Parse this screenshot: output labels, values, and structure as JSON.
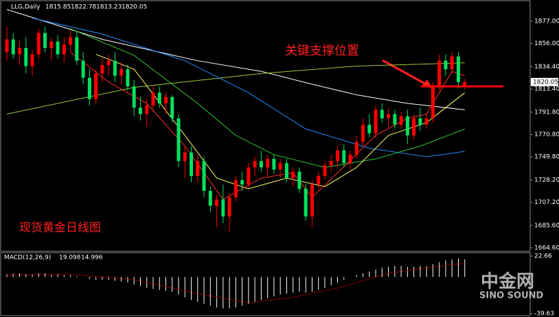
{
  "chart_data": [
    {
      "type": "candlestick",
      "header": "LLG,Daily",
      "annotation": "关键支撑位置",
      "caption": "现货黄金日线图",
      "support_level": 1816,
      "up_color": "#ff0000",
      "down_color": "#00e060",
      "ylim": [
        1661.4,
        1893.7
      ],
      "yticks": [
        {
          "value": 1877,
          "label": "1877.00"
        },
        {
          "value": 1856,
          "label": "1856.00"
        },
        {
          "value": 1834.4,
          "label": "1834.40"
        },
        {
          "value": 1813.4,
          "label": "1813.40"
        },
        {
          "value": 1791.8,
          "label": "1791.80"
        },
        {
          "value": 1770.8,
          "label": "1770.80"
        },
        {
          "value": 1749.8,
          "label": "1749.80"
        },
        {
          "value": 1728.2,
          "label": "1728.20"
        },
        {
          "value": 1707.2,
          "label": "1707.20"
        },
        {
          "value": 1685.6,
          "label": "1685.60"
        },
        {
          "value": 1664.6,
          "label": "1664.60"
        }
      ],
      "ohlc": [
        [
          1848,
          1872,
          1840,
          1860
        ],
        [
          1860,
          1866,
          1842,
          1846
        ],
        [
          1846,
          1858,
          1836,
          1852
        ],
        [
          1852,
          1862,
          1828,
          1835
        ],
        [
          1835,
          1850,
          1826,
          1846
        ],
        [
          1846,
          1870,
          1842,
          1866
        ],
        [
          1866,
          1872,
          1848,
          1852
        ],
        [
          1852,
          1862,
          1840,
          1858
        ],
        [
          1858,
          1864,
          1842,
          1846
        ],
        [
          1846,
          1862,
          1838,
          1855
        ],
        [
          1855,
          1868,
          1848,
          1862
        ],
        [
          1862,
          1868,
          1836,
          1840
        ],
        [
          1840,
          1848,
          1818,
          1824
        ],
        [
          1824,
          1832,
          1798,
          1804
        ],
        [
          1804,
          1832,
          1800,
          1828
        ],
        [
          1828,
          1842,
          1820,
          1836
        ],
        [
          1836,
          1846,
          1826,
          1840
        ],
        [
          1840,
          1848,
          1820,
          1826
        ],
        [
          1826,
          1838,
          1818,
          1832
        ],
        [
          1832,
          1836,
          1812,
          1816
        ],
        [
          1816,
          1822,
          1788,
          1796
        ],
        [
          1796,
          1806,
          1784,
          1790
        ],
        [
          1790,
          1804,
          1778,
          1798
        ],
        [
          1798,
          1816,
          1792,
          1810
        ],
        [
          1810,
          1816,
          1796,
          1800
        ],
        [
          1800,
          1810,
          1790,
          1806
        ],
        [
          1806,
          1808,
          1782,
          1786
        ],
        [
          1786,
          1790,
          1740,
          1746
        ],
        [
          1746,
          1760,
          1730,
          1754
        ],
        [
          1754,
          1760,
          1726,
          1732
        ],
        [
          1732,
          1752,
          1726,
          1746
        ],
        [
          1746,
          1750,
          1712,
          1718
        ],
        [
          1718,
          1722,
          1698,
          1704
        ],
        [
          1704,
          1714,
          1684,
          1710
        ],
        [
          1710,
          1724,
          1688,
          1694
        ],
        [
          1694,
          1716,
          1680,
          1712
        ],
        [
          1712,
          1732,
          1708,
          1728
        ],
        [
          1728,
          1736,
          1718,
          1724
        ],
        [
          1724,
          1744,
          1720,
          1740
        ],
        [
          1740,
          1750,
          1732,
          1746
        ],
        [
          1746,
          1756,
          1736,
          1740
        ],
        [
          1740,
          1752,
          1732,
          1748
        ],
        [
          1748,
          1752,
          1734,
          1738
        ],
        [
          1738,
          1748,
          1730,
          1744
        ],
        [
          1744,
          1748,
          1726,
          1730
        ],
        [
          1730,
          1740,
          1722,
          1736
        ],
        [
          1736,
          1740,
          1716,
          1720
        ],
        [
          1720,
          1724,
          1690,
          1694
        ],
        [
          1694,
          1728,
          1684,
          1724
        ],
        [
          1724,
          1736,
          1720,
          1732
        ],
        [
          1732,
          1746,
          1728,
          1742
        ],
        [
          1742,
          1752,
          1736,
          1746
        ],
        [
          1746,
          1760,
          1740,
          1756
        ],
        [
          1756,
          1762,
          1740,
          1744
        ],
        [
          1744,
          1756,
          1738,
          1752
        ],
        [
          1752,
          1770,
          1748,
          1764
        ],
        [
          1764,
          1786,
          1760,
          1780
        ],
        [
          1780,
          1790,
          1768,
          1772
        ],
        [
          1772,
          1798,
          1768,
          1794
        ],
        [
          1794,
          1800,
          1782,
          1786
        ],
        [
          1786,
          1796,
          1778,
          1790
        ],
        [
          1790,
          1794,
          1776,
          1780
        ],
        [
          1780,
          1792,
          1776,
          1788
        ],
        [
          1788,
          1794,
          1762,
          1770
        ],
        [
          1770,
          1790,
          1766,
          1786
        ],
        [
          1786,
          1796,
          1774,
          1780
        ],
        [
          1780,
          1790,
          1776,
          1786
        ],
        [
          1786,
          1820,
          1782,
          1816
        ],
        [
          1816,
          1846,
          1812,
          1840
        ],
        [
          1840,
          1846,
          1826,
          1832
        ],
        [
          1832,
          1848,
          1828,
          1844
        ],
        [
          1844,
          1848,
          1814,
          1820
        ],
        [
          1815.85,
          1822.78,
          1813.23,
          1820.05
        ]
      ],
      "series": [
        {
          "color": "#ffffff",
          "x": [
            0,
            15,
            30,
            40,
            48,
            55,
            63,
            72
          ],
          "values": [
            1888,
            1860,
            1840,
            1830,
            1818,
            1808,
            1800,
            1794
          ]
        },
        {
          "color": "#9acd32",
          "x": [
            0,
            20,
            40,
            55,
            72
          ],
          "values": [
            1790,
            1815,
            1828,
            1835,
            1838
          ]
        },
        {
          "color": "#1e90ff",
          "x": [
            4,
            15,
            28,
            38,
            47,
            57,
            66,
            72
          ],
          "values": [
            1880,
            1865,
            1840,
            1810,
            1776,
            1758,
            1750,
            1755
          ]
        },
        {
          "color": "#32cd32",
          "x": [
            10,
            20,
            30,
            36,
            42,
            50,
            58,
            65,
            72
          ],
          "values": [
            1870,
            1845,
            1800,
            1770,
            1752,
            1740,
            1748,
            1760,
            1776
          ]
        },
        {
          "color": "#ffff66",
          "x": [
            14,
            20,
            28,
            33,
            38,
            44,
            50,
            55,
            60,
            66,
            72
          ],
          "values": [
            1846,
            1832,
            1770,
            1730,
            1720,
            1730,
            1722,
            1740,
            1770,
            1782,
            1810
          ]
        },
        {
          "color": "#ff3030",
          "x": [
            10,
            16,
            22,
            28,
            34,
            40,
            45,
            48,
            52,
            58,
            63,
            66,
            70,
            72
          ],
          "values": [
            1848,
            1820,
            1800,
            1760,
            1710,
            1730,
            1735,
            1712,
            1735,
            1770,
            1786,
            1790,
            1830,
            1826
          ]
        }
      ]
    },
    {
      "type": "macd",
      "label": "MACD(12,26,9)",
      "ylim": [
        -41.85,
        26.37
      ],
      "yticks": [
        22.66,
        -39.63
      ],
      "series": [
        {
          "color": "#ffffff",
          "values": [
            3,
            4,
            4,
            3,
            3,
            4,
            4,
            3,
            3,
            2,
            2,
            1,
            0,
            -2,
            -3,
            -3,
            -3,
            -4,
            -5,
            -6,
            -8,
            -10,
            -12,
            -13,
            -14,
            -15,
            -16,
            -19,
            -22,
            -25,
            -27,
            -29,
            -31,
            -33,
            -34,
            -34,
            -33,
            -31,
            -29,
            -27,
            -25,
            -23,
            -21,
            -19,
            -18,
            -17,
            -16,
            -17,
            -16,
            -14,
            -12,
            -9,
            -6,
            -3,
            0,
            2,
            4,
            6,
            8,
            10,
            11,
            12,
            12,
            11,
            11,
            12,
            12,
            14,
            16,
            18,
            19,
            20,
            19.098
          ]
        },
        {
          "color": "#ff0000",
          "x": [
            0,
            10,
            20,
            30,
            38,
            45,
            52,
            60,
            66,
            72
          ],
          "values": [
            2,
            3,
            -3,
            -18,
            -28,
            -22,
            -12,
            4,
            10,
            14.996
          ]
        }
      ]
    }
  ],
  "watermark": {
    "title": "中金网",
    "subtitle": "SINO SOUND"
  }
}
